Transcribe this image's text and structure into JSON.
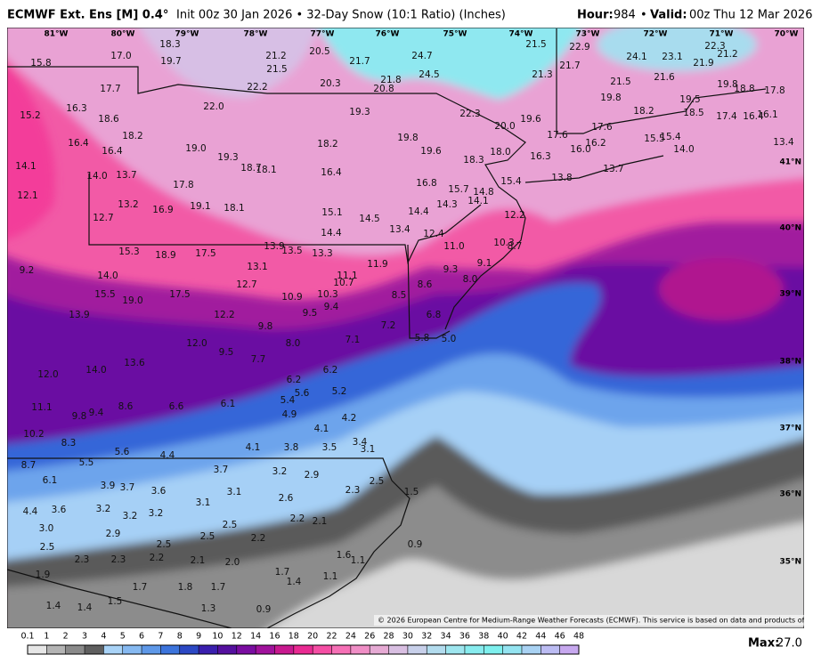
{
  "header": {
    "model": "ECMWF Ext. Ens [M] 0.4°",
    "subtitle": "Init 00z 30 Jan 2026 • 32-Day Snow (10:1 Ratio) (Inches)",
    "hour_label": "Hour:",
    "hour": "984",
    "separator": "•",
    "valid_label": "Valid:",
    "valid": "00z Thu 12 Mar 2026"
  },
  "map": {
    "longitudes": [
      "81°W",
      "80°W",
      "79°W",
      "78°W",
      "77°W",
      "76°W",
      "75°W",
      "74°W",
      "73°W",
      "72°W",
      "71°W",
      "70°W"
    ],
    "latitudes": [
      "41°N",
      "40°N",
      "39°N",
      "38°N",
      "37°N",
      "36°N",
      "35°N"
    ],
    "values": [
      "15.8",
      "17.0",
      "18.3",
      "19.7",
      "21.2",
      "21.5",
      "20.5",
      "21.7",
      "24.7",
      "24.5",
      "21.5",
      "22.9",
      "24.1",
      "23.1",
      "22.3",
      "21.9",
      "21.2",
      "17.7",
      "22.2",
      "20.3",
      "21.8",
      "20.8",
      "21.3",
      "21.7",
      "21.5",
      "21.6",
      "19.8",
      "18.8",
      "17.8",
      "15.2",
      "16.3",
      "18.6",
      "22.0",
      "19.3",
      "22.3",
      "20.0",
      "19.6",
      "19.8",
      "18.2",
      "19.5",
      "18.5",
      "17.4",
      "16.4",
      "16.1",
      "18.2",
      "16.4",
      "16.4",
      "19.0",
      "19.3",
      "18.2",
      "19.8",
      "19.6",
      "18.0",
      "17.6",
      "17.6",
      "16.2",
      "16.0",
      "15.5",
      "15.4",
      "14.0",
      "13.4",
      "14.1",
      "18.7",
      "18.1",
      "18.3",
      "16.3",
      "13.7",
      "13.8",
      "14.0",
      "13.7",
      "17.8",
      "16.4",
      "16.8",
      "15.7",
      "14.8",
      "15.4",
      "12.1",
      "13.2",
      "19.1",
      "18.1",
      "16.9",
      "15.1",
      "14.5",
      "14.4",
      "14.3",
      "14.1",
      "12.2",
      "12.7",
      "14.4",
      "13.4",
      "12.4",
      "11.0",
      "10.3",
      "8.7",
      "15.3",
      "18.9",
      "17.5",
      "13.9",
      "13.5",
      "13.3",
      "13.1",
      "9.2",
      "14.0",
      "9.3",
      "9.1",
      "8.0",
      "11.1",
      "11.9",
      "10.7",
      "12.7",
      "15.5",
      "19.0",
      "17.5",
      "10.9",
      "10.3",
      "8.5",
      "8.6",
      "12.2",
      "9.5",
      "9.4",
      "13.9",
      "9.8",
      "6.8",
      "7.2",
      "7.1",
      "8.0",
      "5.8",
      "5.0",
      "12.0",
      "9.5",
      "7.7",
      "13.6",
      "14.0",
      "12.0",
      "6.2",
      "6.2",
      "5.6",
      "5.2",
      "5.4",
      "4.9",
      "4.2",
      "11.1",
      "9.8",
      "9.4",
      "8.6",
      "6.6",
      "6.1",
      "4.1",
      "10.2",
      "8.3",
      "3.4",
      "3.1",
      "4.1",
      "3.8",
      "3.5",
      "5.6",
      "4.4",
      "5.5",
      "8.7",
      "3.7",
      "3.2",
      "2.9",
      "6.1",
      "3.9",
      "3.7",
      "3.6",
      "3.1",
      "2.6",
      "2.3",
      "2.5",
      "1.5",
      "3.1",
      "4.4",
      "3.6",
      "3.2",
      "3.2",
      "3.2",
      "2.2",
      "2.1",
      "3.0",
      "2.5",
      "2.9",
      "2.5",
      "2.2",
      "2.5",
      "2.5",
      "1.6",
      "0.9",
      "2.3",
      "2.3",
      "2.2",
      "2.1",
      "2.0",
      "1.1",
      "1.9",
      "1.7",
      "1.4",
      "1.1",
      "1.7",
      "1.8",
      "1.7",
      "1.4",
      "1.5",
      "1.4",
      "1.3",
      "0.9"
    ],
    "copyright": "© 2026 European Centre for Medium-Range Weather Forecasts (ECMWF). This service is based on data and products of the ECMWF."
  },
  "colorbar": {
    "ticks": [
      0.1,
      1,
      2,
      3,
      4,
      5,
      6,
      7,
      8,
      9,
      10,
      12,
      14,
      16,
      18,
      20,
      22,
      24,
      26,
      28,
      30,
      32,
      34,
      36,
      38,
      40,
      42,
      44,
      46,
      48
    ],
    "colors": [
      "#e6e6e6",
      "#b4b4b4",
      "#8a8a8a",
      "#5f5f5f",
      "#a9d3f7",
      "#86b9f1",
      "#5e98e8",
      "#3c74dc",
      "#2c48c4",
      "#3a1fae",
      "#55109f",
      "#7a0da1",
      "#a0129c",
      "#c8198f",
      "#e92a92",
      "#f54ea4",
      "#f670b6",
      "#f08ec6",
      "#e6aad4",
      "#d9bfe2",
      "#c8d0ea",
      "#b3dcee",
      "#9ee6ef",
      "#88ecef",
      "#7ef0ee",
      "#94e4f1",
      "#a9d2f3",
      "#bcbcf3",
      "#c7a8ef"
    ],
    "max_label": "Max:",
    "max": "27.0"
  }
}
